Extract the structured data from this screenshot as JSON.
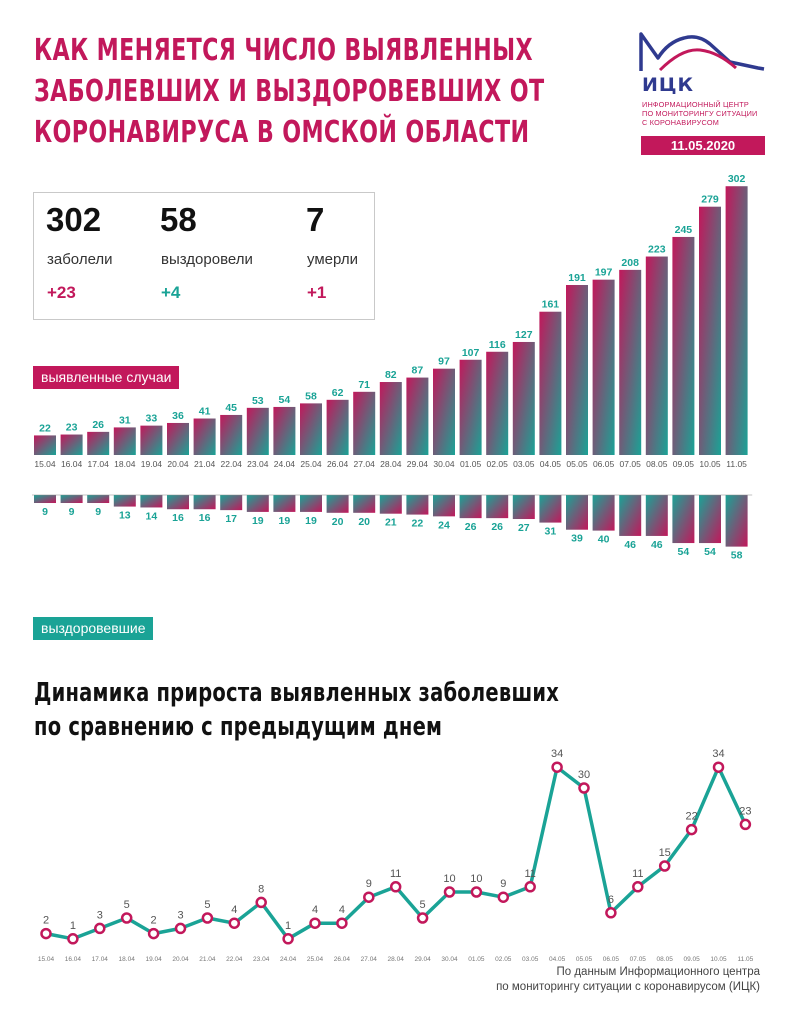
{
  "header": {
    "title_lines": [
      "Как меняется число выявленных",
      "заболевших и выздоровевших от",
      "коронавируса в Омской области"
    ]
  },
  "logo": {
    "name": "ИЦК",
    "subtitle_lines": [
      "Информационный центр",
      "по мониторингу ситуации",
      "с коронавирусом"
    ],
    "date": "11.05.2020"
  },
  "stats": [
    {
      "value": "302",
      "label": "заболели",
      "delta": "+23",
      "color": "#c2185b"
    },
    {
      "value": "58",
      "label": "выздоровели",
      "delta": "+4",
      "color": "#1aa396"
    },
    {
      "value": "7",
      "label": "умерли",
      "delta": "+1",
      "color": "#c2185b"
    }
  ],
  "legend": {
    "cases_tag": "выявленные случаи",
    "recovered_tag": "выздоровевшие"
  },
  "colors": {
    "magenta": "#c2185b",
    "teal": "#1aa396"
  },
  "chart_data": [
    {
      "type": "bar",
      "categories": [
        "15.04",
        "16.04",
        "17.04",
        "18.04",
        "19.04",
        "20.04",
        "21.04",
        "22.04",
        "23.04",
        "24.04",
        "25.04",
        "26.04",
        "27.04",
        "28.04",
        "29.04",
        "30.04",
        "01.05",
        "02.05",
        "03.05",
        "04.05",
        "05.05",
        "06.05",
        "07.05",
        "08.05",
        "09.05",
        "10.05",
        "11.05"
      ],
      "series": [
        {
          "name": "выявленные случаи",
          "values": [
            22,
            23,
            26,
            31,
            33,
            36,
            41,
            45,
            53,
            54,
            58,
            62,
            71,
            82,
            87,
            97,
            107,
            116,
            127,
            161,
            191,
            197,
            208,
            223,
            245,
            279,
            302
          ]
        },
        {
          "name": "выздоровевшие",
          "values": [
            9,
            9,
            9,
            13,
            14,
            16,
            16,
            17,
            19,
            19,
            19,
            20,
            20,
            21,
            22,
            24,
            26,
            26,
            27,
            31,
            39,
            40,
            46,
            46,
            54,
            54,
            58
          ]
        }
      ]
    },
    {
      "type": "line",
      "title_lines": [
        "Динамика прироста выявленных заболевших",
        "по сравнению с предыдущим днем"
      ],
      "x": [
        "15.04",
        "16.04",
        "17.04",
        "18.04",
        "19.04",
        "20.04",
        "21.04",
        "22.04",
        "23.04",
        "24.04",
        "25.04",
        "26.04",
        "27.04",
        "28.04",
        "29.04",
        "30.04",
        "01.05",
        "02.05",
        "03.05",
        "04.05",
        "05.05",
        "06.05",
        "07.05",
        "08.05",
        "09.05",
        "10.05",
        "11.05"
      ],
      "values": [
        2,
        1,
        3,
        5,
        2,
        3,
        5,
        4,
        8,
        1,
        4,
        4,
        9,
        11,
        5,
        10,
        10,
        9,
        11,
        34,
        30,
        6,
        11,
        15,
        22,
        34,
        23
      ]
    }
  ],
  "source_lines": [
    "По данным Информационного центра",
    "по мониторингу ситуации с коронавирусом (ИЦК)"
  ]
}
